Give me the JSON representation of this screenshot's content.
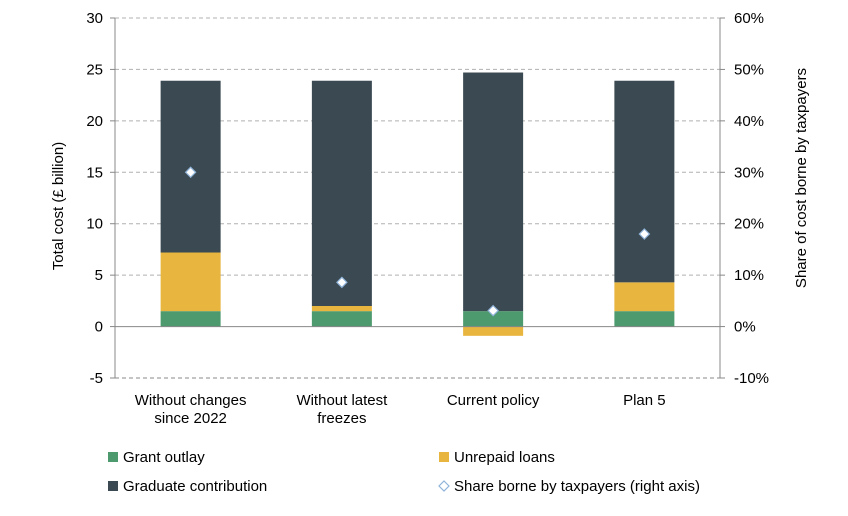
{
  "chart_data": {
    "type": "bar",
    "stacked": true,
    "categories": [
      [
        "Without changes",
        "since 2022"
      ],
      [
        "Without latest",
        "freezes"
      ],
      [
        "Current policy"
      ],
      [
        "Plan 5"
      ]
    ],
    "series": [
      {
        "name": "Grant outlay",
        "color": "#4e9a6f",
        "values": [
          1.5,
          1.5,
          1.5,
          1.5
        ]
      },
      {
        "name": "Unrepaid loans",
        "color": "#e8b53f",
        "values": [
          5.7,
          0.5,
          -0.9,
          2.8
        ]
      },
      {
        "name": "Graduate contribution",
        "color": "#3b4a52",
        "values": [
          16.7,
          21.9,
          23.2,
          19.6
        ]
      }
    ],
    "secondary_series": {
      "name": "Share borne by taxpayers (right axis)",
      "type": "scatter",
      "marker": "diamond",
      "values": [
        30,
        8.6,
        3.1,
        18.0
      ]
    },
    "ylabel": "Total cost (£ billion)",
    "y2label": "Share of cost borne by taxpayers",
    "ylim": [
      -5,
      30
    ],
    "yticks": [
      "-5",
      "0",
      "5",
      "10",
      "15",
      "20",
      "25",
      "30"
    ],
    "y2lim": [
      -10,
      60
    ],
    "y2ticks": [
      "-10%",
      "0%",
      "10%",
      "20%",
      "30%",
      "40%",
      "50%",
      "60%"
    ],
    "grid": "dashed-horizontal",
    "legend_position": "bottom",
    "legend": [
      "Grant outlay",
      "Unrepaid loans",
      "Graduate contribution",
      "Share borne by taxpayers (right axis)"
    ]
  }
}
